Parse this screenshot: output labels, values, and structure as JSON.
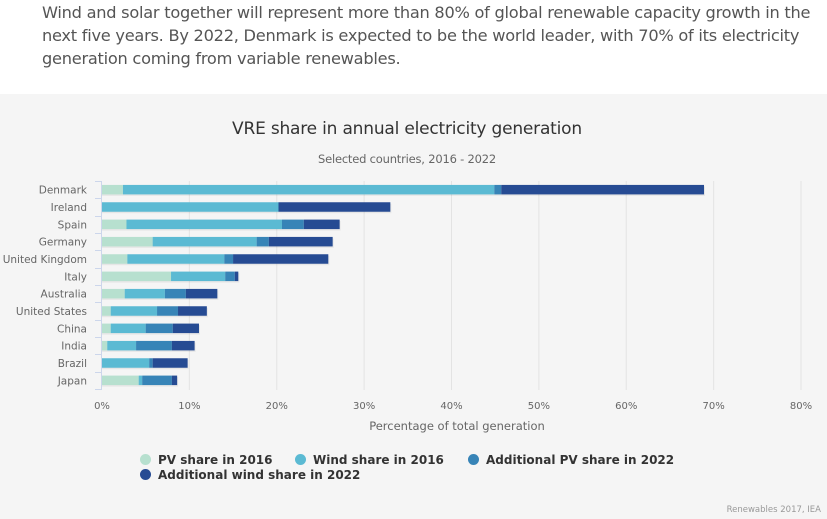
{
  "intro_text": "Wind and solar together will represent more than 80% of global renewable capacity growth in the next five years. By 2022, Denmark is expected to be the world leader, with 70% of its electricity generation coming from variable renewables.",
  "credit": "Renewables 2017, IEA",
  "chart_data": {
    "type": "bar",
    "orientation": "horizontal",
    "stacked": true,
    "title": "VRE share in annual electricity generation",
    "subtitle": "Selected countries, 2016 - 2022",
    "xlabel": "Percentage of total generation",
    "ylabel": "",
    "xlim": [
      0,
      80
    ],
    "x_ticks": [
      0,
      10,
      20,
      30,
      40,
      50,
      60,
      70,
      80
    ],
    "x_tick_labels": [
      "0%",
      "10%",
      "20%",
      "30%",
      "40%",
      "50%",
      "60%",
      "70%",
      "80%"
    ],
    "grid": true,
    "legend_position": "bottom",
    "categories": [
      "Denmark",
      "Ireland",
      "Spain",
      "Germany",
      "United Kingdom",
      "Italy",
      "Australia",
      "United States",
      "China",
      "India",
      "Brazil",
      "Japan"
    ],
    "series": [
      {
        "name": "PV share in 2016",
        "color": "#b7e0cf",
        "values": [
          2.4,
          0.0,
          2.8,
          5.8,
          2.9,
          7.9,
          2.6,
          1.0,
          1.0,
          0.6,
          0.0,
          4.2
        ]
      },
      {
        "name": "Wind share in 2016",
        "color": "#5bbad3",
        "values": [
          42.5,
          20.2,
          17.8,
          11.9,
          11.1,
          6.2,
          4.6,
          5.3,
          4.0,
          3.3,
          5.4,
          0.4
        ]
      },
      {
        "name": "Additional PV share in 2022",
        "color": "#3784b7",
        "values": [
          0.8,
          0.0,
          2.5,
          1.4,
          1.0,
          1.1,
          2.4,
          2.4,
          3.1,
          4.1,
          0.4,
          3.4
        ]
      },
      {
        "name": "Additional wind share in 2022",
        "color": "#264b93",
        "values": [
          23.2,
          12.8,
          4.1,
          7.3,
          10.9,
          0.4,
          3.6,
          3.3,
          3.0,
          2.6,
          4.0,
          0.6
        ]
      }
    ]
  }
}
